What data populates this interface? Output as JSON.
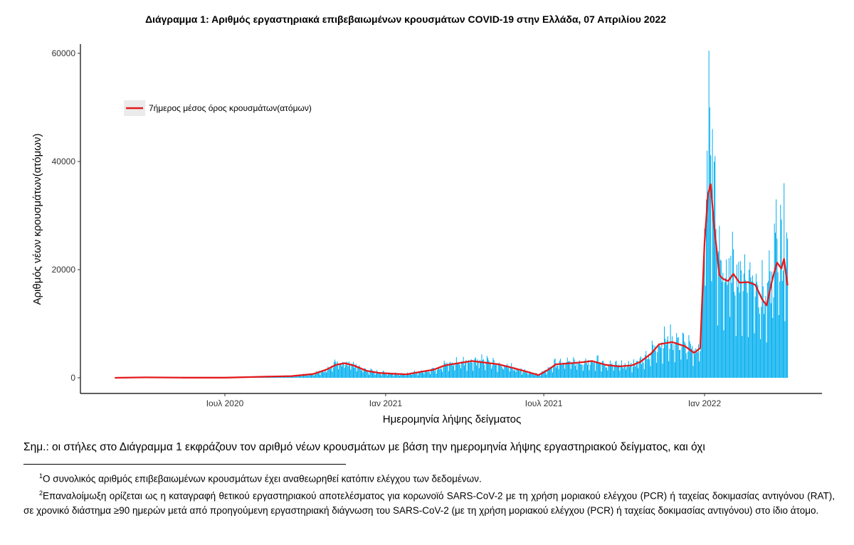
{
  "chart_data": {
    "type": "bar",
    "title": "Διάγραμμα 1: Αριθμός εργαστηριακά επιβεβαιωμένων κρουσμάτων COVID-19 στην Ελλάδα, 07 Απριλίου 2022",
    "xlabel": "Ημερομηνία λήψης δείγματος",
    "ylabel": "Αριθμός νέων κρουσμάτων(ατόμων)",
    "x_ticks": [
      "Ιουλ 2020",
      "Ιαν 2021",
      "Ιουλ 2021",
      "Ιαν 2022"
    ],
    "y_ticks": [
      0,
      20000,
      40000,
      60000
    ],
    "ylim": [
      0,
      60500
    ],
    "x_range": [
      "2020-02-26",
      "2022-04-06"
    ],
    "bar_color": "#00aeef",
    "line_color": "#e31a1c",
    "grid": false,
    "legend_position": "top-left",
    "series": [
      {
        "name": "7ήμερος μέσος όρος κρουσμάτων(ατόμων)",
        "type": "line",
        "points": [
          [
            "2020-02-26",
            0
          ],
          [
            "2020-04-01",
            80
          ],
          [
            "2020-05-15",
            20
          ],
          [
            "2020-07-01",
            30
          ],
          [
            "2020-08-01",
            150
          ],
          [
            "2020-08-20",
            230
          ],
          [
            "2020-09-15",
            300
          ],
          [
            "2020-10-10",
            700
          ],
          [
            "2020-10-25",
            1500
          ],
          [
            "2020-11-05",
            2400
          ],
          [
            "2020-11-15",
            2700
          ],
          [
            "2020-11-25",
            2300
          ],
          [
            "2020-12-10",
            1300
          ],
          [
            "2020-12-25",
            900
          ],
          [
            "2021-01-10",
            750
          ],
          [
            "2021-01-25",
            650
          ],
          [
            "2021-02-10",
            1100
          ],
          [
            "2021-02-25",
            1500
          ],
          [
            "2021-03-10",
            2300
          ],
          [
            "2021-03-25",
            2700
          ],
          [
            "2021-04-10",
            3100
          ],
          [
            "2021-04-25",
            2800
          ],
          [
            "2021-05-10",
            2500
          ],
          [
            "2021-05-25",
            1900
          ],
          [
            "2021-06-10",
            1200
          ],
          [
            "2021-06-25",
            500
          ],
          [
            "2021-07-05",
            1400
          ],
          [
            "2021-07-15",
            2500
          ],
          [
            "2021-08-01",
            2700
          ],
          [
            "2021-08-15",
            2900
          ],
          [
            "2021-08-25",
            3100
          ],
          [
            "2021-09-10",
            2400
          ],
          [
            "2021-09-25",
            2100
          ],
          [
            "2021-10-10",
            2300
          ],
          [
            "2021-10-20",
            3000
          ],
          [
            "2021-11-01",
            4500
          ],
          [
            "2021-11-10",
            6200
          ],
          [
            "2021-11-25",
            6600
          ],
          [
            "2021-12-10",
            5800
          ],
          [
            "2021-12-20",
            4600
          ],
          [
            "2021-12-27",
            5500
          ],
          [
            "2022-01-01",
            25000
          ],
          [
            "2022-01-05",
            34000
          ],
          [
            "2022-01-08",
            35800
          ],
          [
            "2022-01-12",
            28000
          ],
          [
            "2022-01-18",
            19000
          ],
          [
            "2022-01-22",
            18300
          ],
          [
            "2022-01-28",
            17900
          ],
          [
            "2022-02-03",
            19200
          ],
          [
            "2022-02-10",
            17600
          ],
          [
            "2022-02-20",
            17700
          ],
          [
            "2022-02-28",
            17200
          ],
          [
            "2022-03-08",
            14500
          ],
          [
            "2022-03-13",
            13400
          ],
          [
            "2022-03-20",
            18500
          ],
          [
            "2022-03-25",
            21300
          ],
          [
            "2022-03-30",
            20200
          ],
          [
            "2022-04-02",
            22000
          ],
          [
            "2022-04-06",
            17100
          ]
        ]
      }
    ],
    "bar_peaks": [
      [
        "2022-01-04",
        42000
      ],
      [
        "2022-01-06",
        60500
      ],
      [
        "2022-01-07",
        50000
      ],
      [
        "2022-01-10",
        46000
      ],
      [
        "2022-01-13",
        41000
      ],
      [
        "2022-03-24",
        33000
      ],
      [
        "2022-03-29",
        32000
      ],
      [
        "2022-04-02",
        36000
      ]
    ]
  },
  "note": "Σημ.: οι στήλες στο Διάγραμμα 1 εκφράζουν τον αριθμό νέων κρουσμάτων με βάση την ημερομηνία λήψης εργαστηριακού δείγματος, και όχι",
  "footnotes": {
    "fn1_mark": "1",
    "fn1_text": "Ο συνολικός αριθμός επιβεβαιωμένων κρουσμάτων έχει αναθεωρηθεί κατόπιν ελέγχου των δεδομένων.",
    "fn2_mark": "2",
    "fn2_text": "Επαναλοίμωξη ορίζεται ως η καταγραφή θετικού εργαστηριακού αποτελέσματος για κορωνοϊό SARS-CoV-2 με τη χρήση μοριακού ελέγχου (PCR) ή ταχείας δοκιμασίας αντιγόνου (RAT), σε χρονικό διάστημα ≥90 ημερών μετά από προηγούμενη εργαστηριακή διάγνωση του SARS-CoV-2 (με τη χρήση μοριακού ελέγχου (PCR) ή ταχείας δοκιμασίας αντιγόνου) στο ίδιο άτομο."
  }
}
